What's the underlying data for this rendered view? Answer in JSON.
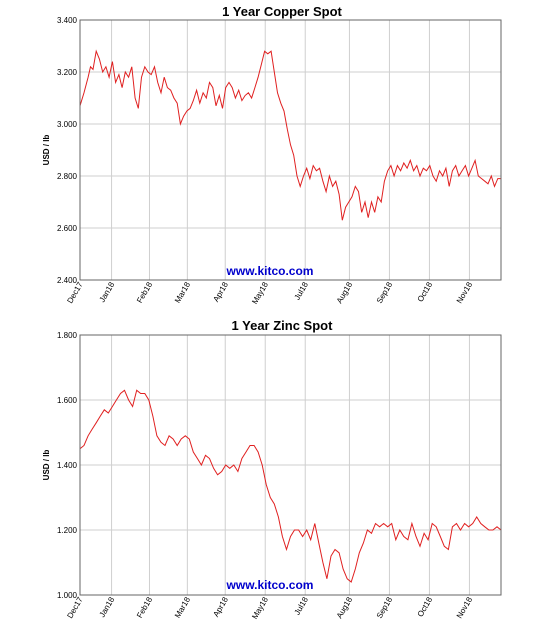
{
  "chart_data": [
    {
      "type": "line",
      "title": "1 Year Copper Spot",
      "ylabel": "USD / lb",
      "xlabel": "",
      "watermark": "www.kitco.com",
      "ylim": [
        2.4,
        3.4
      ],
      "yticks": [
        "2.400",
        "2.600",
        "2.800",
        "3.000",
        "3.200",
        "3.400"
      ],
      "xticks": [
        "Dec17",
        "Jan18",
        "Feb18",
        "Mar18",
        "Apr18",
        "May18",
        "Jul18",
        "Aug18",
        "Sep18",
        "Oct18",
        "Nov18"
      ],
      "grid": true,
      "line_color": "#e02020",
      "series": [
        {
          "x": [
            0,
            0.5,
            1,
            1.3,
            1.6,
            2.0,
            2.4,
            2.8,
            3.2,
            3.6,
            4.0,
            4.4,
            4.8,
            5.2,
            5.6,
            6.0,
            6.4,
            6.8,
            7.2,
            7.6,
            8.0,
            8.4,
            8.8,
            9.2,
            9.6,
            10.0,
            10.4,
            10.8,
            11.2,
            11.6,
            12.0,
            12.4,
            12.8,
            13.2,
            13.6,
            14.0,
            14.4,
            14.8,
            15.2,
            15.6,
            16.0,
            16.4,
            16.8,
            17.2,
            17.6,
            18.0,
            18.4,
            18.8,
            19.2,
            19.6,
            20.0,
            20.4,
            20.8,
            21.2,
            21.6,
            22.0,
            22.4,
            22.8,
            23.2,
            23.6,
            24.0,
            24.4,
            24.8,
            25.2,
            25.6,
            26.0,
            26.4,
            26.8,
            27.2,
            27.6,
            28.0,
            28.4,
            28.8,
            29.2,
            29.6,
            30.0,
            30.4,
            30.8,
            31.2,
            31.6,
            32.0,
            32.4,
            32.8,
            33.2,
            33.6,
            34.0,
            34.4,
            34.8,
            35.2,
            35.6,
            36.0,
            36.4,
            36.8,
            37.2,
            37.6,
            38.0,
            38.4,
            38.8,
            39.2,
            39.6,
            40.0,
            40.4,
            40.8,
            41.2,
            41.6,
            42.0,
            42.4,
            42.8,
            43.2,
            43.6,
            44.0,
            44.4,
            44.8,
            45.2,
            45.6,
            46.0,
            46.4,
            46.8,
            47.2,
            47.6,
            48.0,
            48.4,
            48.8,
            49.2,
            49.6,
            50.0,
            50.4,
            50.8,
            51.2,
            51.6,
            52.0
          ],
          "y": [
            3.07,
            3.12,
            3.18,
            3.22,
            3.21,
            3.28,
            3.25,
            3.2,
            3.22,
            3.18,
            3.24,
            3.16,
            3.19,
            3.14,
            3.2,
            3.18,
            3.22,
            3.1,
            3.06,
            3.18,
            3.22,
            3.2,
            3.19,
            3.22,
            3.16,
            3.12,
            3.18,
            3.14,
            3.13,
            3.1,
            3.08,
            3.0,
            3.03,
            3.05,
            3.06,
            3.09,
            3.13,
            3.08,
            3.12,
            3.1,
            3.16,
            3.14,
            3.07,
            3.11,
            3.06,
            3.14,
            3.16,
            3.14,
            3.1,
            3.13,
            3.09,
            3.11,
            3.12,
            3.1,
            3.14,
            3.18,
            3.23,
            3.28,
            3.27,
            3.28,
            3.2,
            3.12,
            3.08,
            3.05,
            2.98,
            2.92,
            2.88,
            2.8,
            2.76,
            2.8,
            2.83,
            2.79,
            2.84,
            2.82,
            2.83,
            2.78,
            2.74,
            2.8,
            2.76,
            2.78,
            2.73,
            2.63,
            2.68,
            2.7,
            2.72,
            2.76,
            2.74,
            2.66,
            2.7,
            2.64,
            2.7,
            2.66,
            2.72,
            2.7,
            2.78,
            2.82,
            2.84,
            2.8,
            2.84,
            2.82,
            2.85,
            2.83,
            2.86,
            2.82,
            2.84,
            2.8,
            2.83,
            2.82,
            2.84,
            2.8,
            2.78,
            2.82,
            2.8,
            2.83,
            2.76,
            2.82,
            2.84,
            2.8,
            2.82,
            2.84,
            2.8,
            2.83,
            2.86,
            2.8,
            2.79,
            2.78,
            2.77,
            2.8,
            2.76,
            2.79,
            2.79
          ]
        }
      ]
    },
    {
      "type": "line",
      "title": "1 Year Zinc Spot",
      "ylabel": "USD / lb",
      "xlabel": "",
      "watermark": "www.kitco.com",
      "ylim": [
        1.0,
        1.8
      ],
      "yticks": [
        "1.000",
        "1.200",
        "1.400",
        "1.600",
        "1.800"
      ],
      "xticks": [
        "Dec17",
        "Jan18",
        "Feb18",
        "Mar18",
        "Apr18",
        "May18",
        "Jul18",
        "Aug18",
        "Sep18",
        "Oct18",
        "Nov18"
      ],
      "grid": true,
      "line_color": "#e02020",
      "series": [
        {
          "x": [
            0,
            0.5,
            1,
            1.5,
            2.0,
            2.5,
            3.0,
            3.5,
            4.0,
            4.5,
            5.0,
            5.5,
            6.0,
            6.5,
            7.0,
            7.5,
            8.0,
            8.5,
            9.0,
            9.5,
            10.0,
            10.5,
            11.0,
            11.5,
            12.0,
            12.5,
            13.0,
            13.5,
            14.0,
            14.5,
            15.0,
            15.5,
            16.0,
            16.5,
            17.0,
            17.5,
            18.0,
            18.5,
            19.0,
            19.5,
            20.0,
            20.5,
            21.0,
            21.5,
            22.0,
            22.5,
            23.0,
            23.5,
            24.0,
            24.5,
            25.0,
            25.5,
            26.0,
            26.5,
            27.0,
            27.5,
            28.0,
            28.5,
            29.0,
            29.5,
            30.0,
            30.5,
            31.0,
            31.5,
            32.0,
            32.5,
            33.0,
            33.5,
            34.0,
            34.5,
            35.0,
            35.5,
            36.0,
            36.5,
            37.0,
            37.5,
            38.0,
            38.5,
            39.0,
            39.5,
            40.0,
            40.5,
            41.0,
            41.5,
            42.0,
            42.5,
            43.0,
            43.5,
            44.0,
            44.5,
            45.0,
            45.5,
            46.0,
            46.5,
            47.0,
            47.5,
            48.0,
            48.5,
            49.0,
            49.5,
            50.0,
            50.5,
            51.0,
            51.5,
            52.0
          ],
          "y": [
            1.45,
            1.46,
            1.49,
            1.51,
            1.53,
            1.55,
            1.57,
            1.56,
            1.58,
            1.6,
            1.62,
            1.63,
            1.6,
            1.58,
            1.63,
            1.62,
            1.62,
            1.6,
            1.55,
            1.49,
            1.47,
            1.46,
            1.49,
            1.48,
            1.46,
            1.48,
            1.49,
            1.48,
            1.44,
            1.42,
            1.4,
            1.43,
            1.42,
            1.39,
            1.37,
            1.38,
            1.4,
            1.39,
            1.4,
            1.38,
            1.42,
            1.44,
            1.46,
            1.46,
            1.44,
            1.4,
            1.34,
            1.3,
            1.28,
            1.24,
            1.18,
            1.14,
            1.18,
            1.2,
            1.2,
            1.18,
            1.2,
            1.17,
            1.22,
            1.16,
            1.1,
            1.05,
            1.12,
            1.14,
            1.13,
            1.08,
            1.05,
            1.04,
            1.08,
            1.13,
            1.16,
            1.2,
            1.19,
            1.22,
            1.21,
            1.22,
            1.21,
            1.22,
            1.17,
            1.2,
            1.18,
            1.17,
            1.22,
            1.18,
            1.15,
            1.19,
            1.17,
            1.22,
            1.21,
            1.18,
            1.15,
            1.14,
            1.21,
            1.22,
            1.2,
            1.22,
            1.21,
            1.22,
            1.24,
            1.22,
            1.21,
            1.2,
            1.2,
            1.21,
            1.2
          ]
        }
      ]
    }
  ]
}
